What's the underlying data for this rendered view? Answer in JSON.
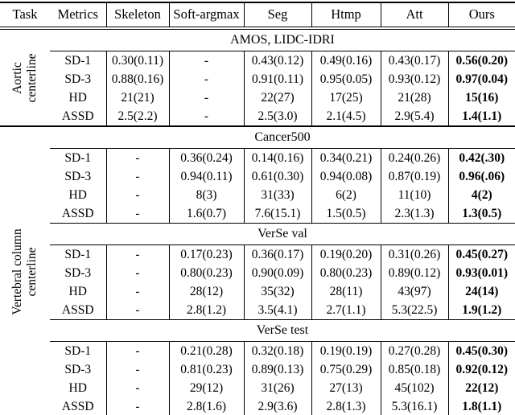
{
  "table": {
    "columns": [
      "Task",
      "Metrics",
      "Skeleton",
      "Soft-argmax",
      "Seg",
      "Htmp",
      "Att",
      "Ours"
    ],
    "tasks": [
      {
        "label_lines": [
          "Aortic",
          "centerline"
        ],
        "datasets": [
          {
            "title": "AMOS, LIDC-IDRI",
            "rows": [
              {
                "metric": "SD-1",
                "values": [
                  "0.30(0.11)",
                  "-",
                  "0.43(0.12)",
                  "0.49(0.16)",
                  "0.43(0.17)",
                  "0.56(0.20)"
                ]
              },
              {
                "metric": "SD-3",
                "values": [
                  "0.88(0.16)",
                  "-",
                  "0.91(0.11)",
                  "0.95(0.05)",
                  "0.93(0.12)",
                  "0.97(0.04)"
                ]
              },
              {
                "metric": "HD",
                "values": [
                  "21(21)",
                  "-",
                  "22(27)",
                  "17(25)",
                  "21(28)",
                  "15(16)"
                ]
              },
              {
                "metric": "ASSD",
                "values": [
                  "2.5(2.2)",
                  "-",
                  "2.5(3.0)",
                  "2.1(4.5)",
                  "2.9(5.4)",
                  "1.4(1.1)"
                ]
              }
            ]
          }
        ]
      },
      {
        "label_lines": [
          "Vertebral column",
          "centerline"
        ],
        "datasets": [
          {
            "title": "Cancer500",
            "rows": [
              {
                "metric": "SD-1",
                "values": [
                  "-",
                  "0.36(0.24)",
                  "0.14(0.16)",
                  "0.34(0.21)",
                  "0.24(0.26)",
                  "0.42(.30)"
                ]
              },
              {
                "metric": "SD-3",
                "values": [
                  "-",
                  "0.94(0.11)",
                  "0.61(0.30)",
                  "0.94(0.08)",
                  "0.87(0.19)",
                  "0.96(.06)"
                ]
              },
              {
                "metric": "HD",
                "values": [
                  "-",
                  "8(3)",
                  "31(33)",
                  "6(2)",
                  "11(10)",
                  "4(2)"
                ]
              },
              {
                "metric": "ASSD",
                "values": [
                  "-",
                  "1.6(0.7)",
                  "7.6(15.1)",
                  "1.5(0.5)",
                  "2.3(1.3)",
                  "1.3(0.5)"
                ]
              }
            ]
          },
          {
            "title": "VerSe val",
            "rows": [
              {
                "metric": "SD-1",
                "values": [
                  "-",
                  "0.17(0.23)",
                  "0.36(0.17)",
                  "0.19(0.20)",
                  "0.31(0.26)",
                  "0.45(0.27)"
                ]
              },
              {
                "metric": "SD-3",
                "values": [
                  "-",
                  "0.80(0.23)",
                  "0.90(0.09)",
                  "0.80(0.23)",
                  "0.89(0.12)",
                  "0.93(0.01)"
                ]
              },
              {
                "metric": "HD",
                "values": [
                  "-",
                  "28(12)",
                  "35(32)",
                  "28(11)",
                  "43(97)",
                  "24(14)"
                ]
              },
              {
                "metric": "ASSD",
                "values": [
                  "-",
                  "2.8(1.2)",
                  "3.5(4.1)",
                  "2.7(1.1)",
                  "5.3(22.5)",
                  "1.9(1.2)"
                ]
              }
            ]
          },
          {
            "title": "VerSe test",
            "rows": [
              {
                "metric": "SD-1",
                "values": [
                  "-",
                  "0.21(0.28)",
                  "0.32(0.18)",
                  "0.19(0.19)",
                  "0.27(0.28)",
                  "0.45(0.30)"
                ]
              },
              {
                "metric": "SD-3",
                "values": [
                  "-",
                  "0.81(0.23)",
                  "0.89(0.13)",
                  "0.75(0.29)",
                  "0.85(0.18)",
                  "0.92(0.12)"
                ]
              },
              {
                "metric": "HD",
                "values": [
                  "-",
                  "29(12)",
                  "31(26)",
                  "27(13)",
                  "45(102)",
                  "22(12)"
                ]
              },
              {
                "metric": "ASSD",
                "values": [
                  "-",
                  "2.8(1.6)",
                  "2.9(3.6)",
                  "2.8(1.3)",
                  "5.3(16.1)",
                  "1.8(1.1)"
                ]
              }
            ]
          }
        ]
      }
    ]
  }
}
